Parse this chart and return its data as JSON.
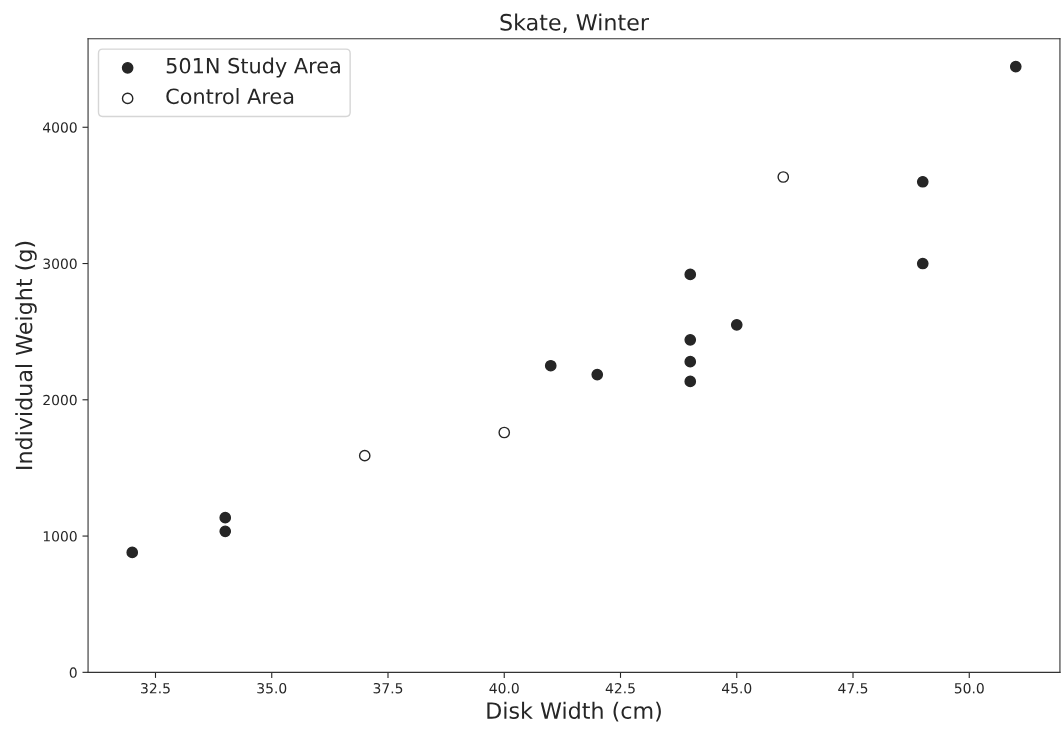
{
  "chart_data": {
    "type": "scatter",
    "title": "Skate, Winter",
    "xlabel": "Disk Width (cm)",
    "ylabel": "Individual Weight (g)",
    "series": [
      {
        "name": "501N Study Area",
        "color": "#262626",
        "x": [
          32,
          34,
          34,
          41,
          42,
          44,
          44,
          44,
          44,
          45,
          49,
          49,
          51
        ],
        "values": [
          880,
          1135,
          1035,
          2250,
          2185,
          2920,
          2440,
          2280,
          2135,
          2550,
          3600,
          3000,
          4445
        ]
      },
      {
        "name": "Control Area",
        "color": "#ffffff",
        "x": [
          37,
          40,
          46
        ],
        "values": [
          1590,
          1760,
          3635
        ]
      }
    ],
    "xlim": [
      31.05,
      51.95
    ],
    "xticks": [
      {
        "value": 32.5,
        "label": "32.5"
      },
      {
        "value": 35,
        "label": "35.0"
      },
      {
        "value": 37.5,
        "label": "37.5"
      },
      {
        "value": 40,
        "label": "40.0"
      },
      {
        "value": 42.5,
        "label": "42.5"
      },
      {
        "value": 45,
        "label": "45.0"
      },
      {
        "value": 47.5,
        "label": "47.5"
      },
      {
        "value": 50,
        "label": "50.0"
      }
    ],
    "ylim": [
      0,
      4650
    ],
    "yticks": [
      0,
      1000,
      2000,
      3000,
      4000
    ],
    "grid": false,
    "legend": "top left",
    "marker": "circle"
  }
}
